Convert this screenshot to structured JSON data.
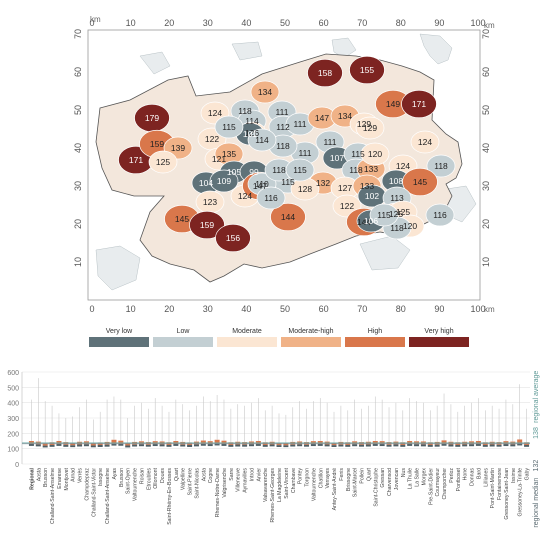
{
  "map": {
    "x_ticks": [
      "0",
      "10",
      "20",
      "30",
      "40",
      "50",
      "60",
      "70",
      "80",
      "90",
      "100"
    ],
    "y_ticks": [
      "70",
      "60",
      "50",
      "40",
      "30",
      "20",
      "10"
    ],
    "x_unit": "km",
    "y_unit": "km",
    "region_values": [
      {
        "value": "179",
        "class": "very-high"
      },
      {
        "value": "171",
        "class": "very-high"
      },
      {
        "value": "159",
        "class": "high"
      },
      {
        "value": "139",
        "class": "moderate-high"
      },
      {
        "value": "125",
        "class": "moderate"
      },
      {
        "value": "124",
        "class": "moderate"
      },
      {
        "value": "122",
        "class": "moderate"
      },
      {
        "value": "121",
        "class": "moderate"
      },
      {
        "value": "118",
        "class": "low"
      },
      {
        "value": "114",
        "class": "low"
      },
      {
        "value": "126",
        "class": "moderate"
      },
      {
        "value": "101",
        "class": "very-low"
      },
      {
        "value": "115",
        "class": "low"
      },
      {
        "value": "135",
        "class": "moderate-high"
      },
      {
        "value": "104",
        "class": "very-low"
      },
      {
        "value": "105",
        "class": "very-low"
      },
      {
        "value": "109",
        "class": "very-low"
      },
      {
        "value": "99",
        "class": "very-low"
      },
      {
        "value": "123",
        "class": "moderate"
      },
      {
        "value": "124",
        "class": "moderate"
      },
      {
        "value": "147",
        "class": "high"
      },
      {
        "value": "145",
        "class": "high"
      },
      {
        "value": "159",
        "class": "very-high"
      },
      {
        "value": "156",
        "class": "very-high"
      },
      {
        "value": "134",
        "class": "moderate-high"
      },
      {
        "value": "111",
        "class": "low"
      },
      {
        "value": "112",
        "class": "low"
      },
      {
        "value": "111",
        "class": "low"
      },
      {
        "value": "158",
        "class": "very-high"
      },
      {
        "value": "155",
        "class": "very-high"
      },
      {
        "value": "149",
        "class": "high"
      },
      {
        "value": "171",
        "class": "very-high"
      },
      {
        "value": "147",
        "class": "moderate-high"
      },
      {
        "value": "134",
        "class": "moderate-high"
      },
      {
        "value": "129",
        "class": "moderate"
      },
      {
        "value": "111",
        "class": "low"
      },
      {
        "value": "107",
        "class": "very-low"
      },
      {
        "value": "115",
        "class": "low"
      },
      {
        "value": "118",
        "class": "low"
      },
      {
        "value": "133",
        "class": "moderate-high"
      },
      {
        "value": "129",
        "class": "moderate"
      },
      {
        "value": "144",
        "class": "high"
      },
      {
        "value": "132",
        "class": "moderate-high"
      },
      {
        "value": "127",
        "class": "moderate"
      },
      {
        "value": "133",
        "class": "moderate-high"
      },
      {
        "value": "120",
        "class": "moderate"
      },
      {
        "value": "124",
        "class": "moderate"
      },
      {
        "value": "124",
        "class": "moderate"
      },
      {
        "value": "118",
        "class": "low"
      },
      {
        "value": "108",
        "class": "very-low"
      },
      {
        "value": "145",
        "class": "high"
      },
      {
        "value": "122",
        "class": "moderate"
      },
      {
        "value": "102",
        "class": "very-low"
      },
      {
        "value": "113",
        "class": "low"
      },
      {
        "value": "125",
        "class": "moderate"
      },
      {
        "value": "144",
        "class": "high"
      },
      {
        "value": "106",
        "class": "very-low"
      },
      {
        "value": "125",
        "class": "moderate"
      },
      {
        "value": "120",
        "class": "moderate"
      },
      {
        "value": "118",
        "class": "low"
      },
      {
        "value": "115",
        "class": "low"
      },
      {
        "value": "116",
        "class": "low"
      },
      {
        "value": "111",
        "class": "low"
      },
      {
        "value": "118",
        "class": "low"
      },
      {
        "value": "115",
        "class": "low"
      },
      {
        "value": "110",
        "class": "low"
      },
      {
        "value": "128",
        "class": "moderate"
      },
      {
        "value": "118",
        "class": "low"
      },
      {
        "value": "116",
        "class": "low"
      },
      {
        "value": "114",
        "class": "low"
      },
      {
        "value": "115",
        "class": "low"
      }
    ]
  },
  "legend": [
    {
      "label": "Very low",
      "color": "#5f7279"
    },
    {
      "label": "Low",
      "color": "#c3cfd3"
    },
    {
      "label": "Moderate",
      "color": "#fbe6d3"
    },
    {
      "label": "Moderate-high",
      "color": "#f0b287"
    },
    {
      "label": "High",
      "color": "#d9774b"
    },
    {
      "label": "Very high",
      "color": "#7d2421"
    }
  ],
  "chart_data": {
    "type": "box",
    "ylim": [
      0,
      600
    ],
    "y_ticks": [
      "0",
      "100",
      "200",
      "300",
      "400",
      "500",
      "600"
    ],
    "regional_average": 138,
    "regional_median": 132,
    "regional_average_label": "regional average",
    "regional_median_label": "regional median",
    "categories": [
      "Regional",
      "Aosta",
      "Brusson",
      "Challand-Saint-Anselme",
      "Emarese",
      "Montjovet",
      "Arnad",
      "Verrès",
      "Champdepraz",
      "Challand-Saint-Victor",
      "Issogne",
      "Challand-Saint-Anselme",
      "Ayas",
      "Brusson",
      "Saint-Oyen",
      "Valtournenche",
      "Roisan",
      "Etroubles",
      "Ollomont",
      "Doues",
      "Saint-Rhémy-En-Bosses",
      "Quart",
      "Valpelline",
      "Saint-Pierre",
      "Saint-Nicolas",
      "Aosta",
      "Cogne",
      "Rhemes-Notre-Dame",
      "Valgrisenche",
      "Sarre",
      "Villeneuve",
      "Aymavilles",
      "Introd",
      "Arvier",
      "Valsavarenche",
      "Rhemes-Saint-Georges",
      "La Magdeleine",
      "Saint-Vincent",
      "Chambave",
      "Pontey",
      "Torgnon",
      "Valtournenche",
      "Chatillon",
      "Verrayes",
      "Antey-Saint-André",
      "Fenis",
      "Brissogne",
      "Saint-Marcel",
      "Pollein",
      "Quart",
      "Saint-Christophe",
      "Gressan",
      "Charvensod",
      "Jovencan",
      "Nus",
      "La Thuile",
      "La Salle",
      "Morgex",
      "Pre-Saint-Didier",
      "Courmayeur",
      "Champorcher",
      "Perloz",
      "Pontboset",
      "Hone",
      "Donnas",
      "Bard",
      "Lillianes",
      "Pont-Saint-Martin",
      "Fontainemore",
      "Gressoney-Saint-Jean",
      "Issime",
      "Gressoney-La-Trinite",
      "Gaby"
    ],
    "series": [
      {
        "name": "q1",
        "values": [
          118,
          115,
          108,
          112,
          118,
          112,
          110,
          114,
          116,
          109,
          111,
          113,
          120,
          119,
          108,
          114,
          116,
          113,
          117,
          115,
          112,
          118,
          114,
          111,
          115,
          119,
          117,
          121,
          118,
          112,
          114,
          113,
          116,
          118,
          112,
          115,
          111,
          110,
          114,
          116,
          113,
          117,
          118,
          115,
          111,
          114,
          112,
          116,
          113,
          114,
          118,
          117,
          113,
          115,
          112,
          118,
          116,
          115,
          112,
          113,
          119,
          114,
          112,
          115,
          116,
          118,
          112,
          114,
          113,
          117,
          115,
          121,
          112
        ]
      },
      {
        "name": "median",
        "values": [
          132,
          128,
          120,
          124,
          131,
          125,
          122,
          127,
          129,
          121,
          124,
          126,
          135,
          132,
          121,
          126,
          129,
          125,
          130,
          128,
          124,
          131,
          126,
          124,
          128,
          133,
          130,
          136,
          132,
          124,
          127,
          126,
          129,
          131,
          124,
          127,
          123,
          122,
          126,
          128,
          125,
          130,
          131,
          127,
          123,
          126,
          124,
          129,
          125,
          127,
          131,
          130,
          125,
          128,
          124,
          131,
          129,
          128,
          124,
          126,
          133,
          127,
          124,
          127,
          129,
          131,
          124,
          127,
          125,
          130,
          128,
          136,
          124
        ]
      },
      {
        "name": "q3",
        "values": [
          150,
          146,
          136,
          142,
          150,
          143,
          139,
          145,
          148,
          138,
          141,
          144,
          158,
          152,
          137,
          144,
          148,
          143,
          149,
          147,
          142,
          150,
          144,
          141,
          146,
          153,
          149,
          158,
          152,
          142,
          145,
          143,
          147,
          150,
          142,
          145,
          140,
          139,
          144,
          147,
          143,
          149,
          150,
          146,
          140,
          144,
          142,
          148,
          143,
          145,
          150,
          149,
          143,
          146,
          142,
          150,
          148,
          147,
          142,
          144,
          154,
          145,
          142,
          145,
          148,
          150,
          142,
          145,
          143,
          149,
          146,
          160,
          142
        ]
      },
      {
        "name": "max",
        "values": [
          420,
          560,
          410,
          380,
          330,
          300,
          310,
          370,
          420,
          290,
          340,
          420,
          440,
          420,
          300,
          380,
          400,
          360,
          430,
          380,
          340,
          420,
          390,
          350,
          380,
          440,
          410,
          450,
          420,
          360,
          390,
          380,
          400,
          430,
          350,
          380,
          330,
          320,
          370,
          410,
          360,
          410,
          430,
          400,
          340,
          380,
          350,
          420,
          360,
          380,
          440,
          420,
          370,
          400,
          350,
          430,
          410,
          400,
          350,
          380,
          460,
          390,
          340,
          380,
          400,
          430,
          350,
          380,
          360,
          420,
          390,
          520,
          360
        ]
      }
    ]
  }
}
